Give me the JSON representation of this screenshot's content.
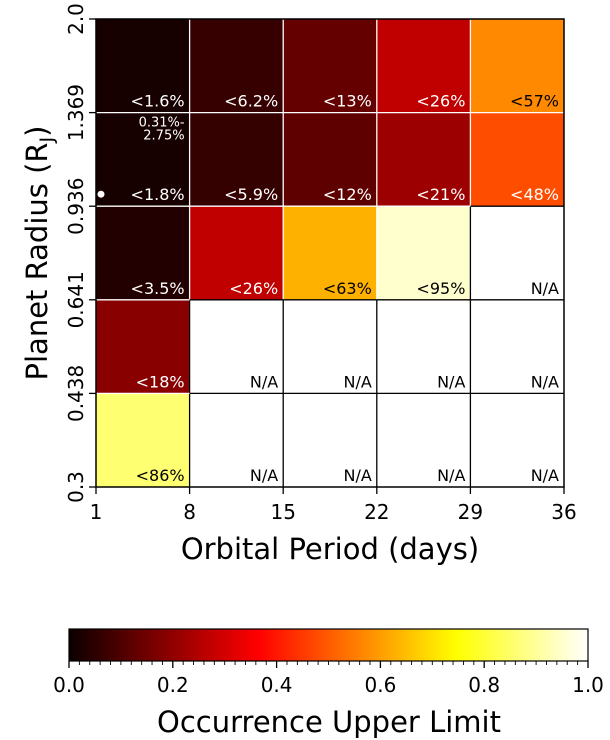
{
  "chart_data": {
    "type": "heatmap",
    "xlabel": "Orbital Period (days)",
    "ylabel_main": "Planet Radius (R",
    "ylabel_sub": "J",
    "ylabel_close": ")",
    "x_ticks": [
      "1",
      "8",
      "15",
      "22",
      "29",
      "36"
    ],
    "y_ticks": [
      "0.3",
      "0.438",
      "0.641",
      "0.936",
      "1.369",
      "2.0"
    ],
    "rows_top_to_bottom": [
      {
        "y_range": [
          "1.369",
          "2.0"
        ],
        "cells": [
          {
            "label": "<1.6%",
            "value": 0.016
          },
          {
            "label": "<6.2%",
            "value": 0.062
          },
          {
            "label": "<13%",
            "value": 0.13
          },
          {
            "label": "<26%",
            "value": 0.26
          },
          {
            "label": "<57%",
            "value": 0.57
          }
        ]
      },
      {
        "y_range": [
          "0.936",
          "1.369"
        ],
        "cells": [
          {
            "label": "<1.8%",
            "value": 0.018,
            "note_line1": "0.31%-",
            "note_line2": "2.75%",
            "marker": true
          },
          {
            "label": "<5.9%",
            "value": 0.059
          },
          {
            "label": "<12%",
            "value": 0.12
          },
          {
            "label": "<21%",
            "value": 0.21
          },
          {
            "label": "<48%",
            "value": 0.48
          }
        ]
      },
      {
        "y_range": [
          "0.641",
          "0.936"
        ],
        "cells": [
          {
            "label": "<3.5%",
            "value": 0.035
          },
          {
            "label": "<26%",
            "value": 0.26
          },
          {
            "label": "<63%",
            "value": 0.63
          },
          {
            "label": "<95%",
            "value": 0.95
          },
          {
            "label": "N/A",
            "value": null
          }
        ]
      },
      {
        "y_range": [
          "0.438",
          "0.641"
        ],
        "cells": [
          {
            "label": "<18%",
            "value": 0.18
          },
          {
            "label": "N/A",
            "value": null
          },
          {
            "label": "N/A",
            "value": null
          },
          {
            "label": "N/A",
            "value": null
          },
          {
            "label": "N/A",
            "value": null
          }
        ]
      },
      {
        "y_range": [
          "0.3",
          "0.438"
        ],
        "cells": [
          {
            "label": "<86%",
            "value": 0.86
          },
          {
            "label": "N/A",
            "value": null
          },
          {
            "label": "N/A",
            "value": null
          },
          {
            "label": "N/A",
            "value": null
          },
          {
            "label": "N/A",
            "value": null
          }
        ]
      }
    ],
    "colorbar": {
      "label": "Occurrence Upper Limit",
      "ticks": [
        "0.0",
        "0.2",
        "0.4",
        "0.6",
        "0.8",
        "1.0"
      ],
      "range": [
        0,
        1
      ],
      "colormap": "hot"
    }
  }
}
